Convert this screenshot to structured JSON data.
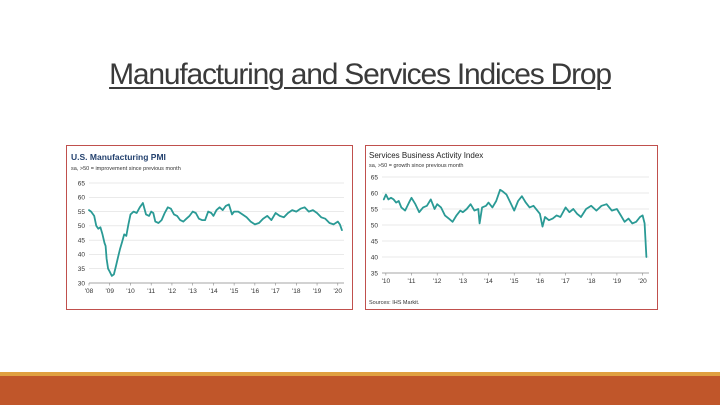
{
  "slide": {
    "title": "Manufacturing and Services Indices Drop",
    "colors": {
      "accent": "#c0562a",
      "accent_light": "#e0a040",
      "line": "#2a9a95",
      "panel_border": "#c0504d"
    }
  },
  "chart_data": [
    {
      "type": "line",
      "title": "U.S. Manufacturing PMI",
      "subtitle": "sa, >50 = improvement since previous month",
      "xlim": [
        2008,
        2020.3
      ],
      "ylim": [
        30,
        65
      ],
      "yticks": [
        30,
        35,
        40,
        45,
        50,
        55,
        60,
        65
      ],
      "xticks": [
        {
          "label": "'08",
          "x": 2008
        },
        {
          "label": "'09",
          "x": 2009
        },
        {
          "label": "'10",
          "x": 2010
        },
        {
          "label": "'11",
          "x": 2011
        },
        {
          "label": "'12",
          "x": 2012
        },
        {
          "label": "'13",
          "x": 2013
        },
        {
          "label": "'14",
          "x": 2014
        },
        {
          "label": "'15",
          "x": 2015
        },
        {
          "label": "'16",
          "x": 2016
        },
        {
          "label": "'17",
          "x": 2017
        },
        {
          "label": "'18",
          "x": 2018
        },
        {
          "label": "'19",
          "x": 2019
        },
        {
          "label": "'20",
          "x": 2020
        }
      ],
      "grid": true,
      "series": [
        {
          "x": [
            2008,
            2008.1,
            2008.25,
            2008.35,
            2008.45,
            2008.55,
            2008.65,
            2008.75,
            2008.8,
            2008.85,
            2008.92,
            2009,
            2009.1,
            2009.2,
            2009.3,
            2009.4,
            2009.5,
            2009.6,
            2009.7,
            2009.8,
            2009.9,
            2010,
            2010.15,
            2010.3,
            2010.45,
            2010.6,
            2010.75,
            2010.9,
            2011,
            2011.1,
            2011.2,
            2011.35,
            2011.5,
            2011.65,
            2011.8,
            2011.95,
            2012.1,
            2012.25,
            2012.4,
            2012.55,
            2012.7,
            2012.85,
            2013,
            2013.15,
            2013.3,
            2013.45,
            2013.6,
            2013.75,
            2013.9,
            2014,
            2014.15,
            2014.3,
            2014.45,
            2014.6,
            2014.75,
            2014.9,
            2015,
            2015.2,
            2015.4,
            2015.6,
            2015.8,
            2016,
            2016.2,
            2016.4,
            2016.6,
            2016.8,
            2017,
            2017.2,
            2017.4,
            2017.6,
            2017.8,
            2018,
            2018.2,
            2018.4,
            2018.6,
            2018.8,
            2019,
            2019.2,
            2019.4,
            2019.6,
            2019.8,
            2020,
            2020.1,
            2020.2
          ],
          "y": [
            55.5,
            55,
            53.5,
            50,
            49,
            49.5,
            47,
            44,
            43,
            38.5,
            35,
            34,
            32.5,
            33,
            36,
            39,
            42,
            44.5,
            47,
            46.5,
            50.5,
            54,
            55,
            54.5,
            56.5,
            58,
            54,
            53.5,
            55,
            54.5,
            51.5,
            51,
            52,
            54.5,
            56.5,
            56,
            54,
            53.5,
            52,
            51.5,
            52.5,
            53.5,
            55,
            54.5,
            52.5,
            52,
            52,
            55,
            54.5,
            53.5,
            55.5,
            56.5,
            55.5,
            57,
            57.5,
            54,
            55,
            55,
            54,
            53,
            51.5,
            50.5,
            51,
            52.5,
            53.5,
            52,
            54.5,
            53.5,
            53,
            54.5,
            55.5,
            55,
            56,
            56.5,
            55,
            55.5,
            54.5,
            53,
            52.5,
            51,
            50.5,
            51.5,
            50.5,
            48.5
          ]
        }
      ]
    },
    {
      "type": "line",
      "title": "Services Business Activity Index",
      "subtitle": "sa, >50 = growth since previous month",
      "source": "Sources: IHS Markit.",
      "xlim": [
        2009.85,
        2020.25
      ],
      "ylim": [
        35,
        65
      ],
      "yticks": [
        35,
        40,
        45,
        50,
        55,
        60,
        65
      ],
      "xticks": [
        {
          "label": "'10",
          "x": 2010
        },
        {
          "label": "'11",
          "x": 2011
        },
        {
          "label": "'12",
          "x": 2012
        },
        {
          "label": "'13",
          "x": 2013
        },
        {
          "label": "'14",
          "x": 2014
        },
        {
          "label": "'15",
          "x": 2015
        },
        {
          "label": "'16",
          "x": 2016
        },
        {
          "label": "'17",
          "x": 2017
        },
        {
          "label": "'18",
          "x": 2018
        },
        {
          "label": "'19",
          "x": 2019
        },
        {
          "label": "'20",
          "x": 2020
        }
      ],
      "grid": true,
      "series": [
        {
          "x": [
            2009.92,
            2010,
            2010.1,
            2010.2,
            2010.3,
            2010.4,
            2010.5,
            2010.6,
            2010.75,
            2010.9,
            2011,
            2011.15,
            2011.3,
            2011.45,
            2011.6,
            2011.75,
            2011.9,
            2012,
            2012.15,
            2012.3,
            2012.45,
            2012.6,
            2012.75,
            2012.9,
            2013,
            2013.15,
            2013.3,
            2013.45,
            2013.6,
            2013.65,
            2013.75,
            2013.9,
            2014,
            2014.15,
            2014.3,
            2014.45,
            2014.55,
            2014.7,
            2014.85,
            2015,
            2015.15,
            2015.3,
            2015.45,
            2015.6,
            2015.75,
            2015.9,
            2016,
            2016.1,
            2016.2,
            2016.35,
            2016.5,
            2016.65,
            2016.8,
            2017,
            2017.15,
            2017.3,
            2017.45,
            2017.6,
            2017.8,
            2018,
            2018.2,
            2018.4,
            2018.6,
            2018.8,
            2019,
            2019.15,
            2019.3,
            2019.45,
            2019.6,
            2019.75,
            2019.9,
            2020,
            2020.08,
            2020.15
          ],
          "y": [
            58,
            59.5,
            58,
            58.5,
            58,
            57,
            57.5,
            55.5,
            54.5,
            57,
            58.5,
            56.5,
            54,
            55.5,
            56,
            58,
            55,
            56.5,
            55.5,
            53,
            52,
            51,
            53,
            54.5,
            54,
            55,
            56.5,
            54.5,
            55,
            50.5,
            55.5,
            56,
            57,
            55.5,
            57.5,
            61,
            60.5,
            59.5,
            57,
            54.5,
            57.5,
            59,
            57,
            55.5,
            56,
            54.5,
            53.5,
            49.5,
            52.5,
            51.5,
            52,
            53,
            52.5,
            55.5,
            54,
            55,
            53.5,
            52.5,
            55,
            56,
            54.5,
            56,
            56.5,
            54.5,
            55,
            53,
            51,
            52,
            50.5,
            51,
            52.5,
            53,
            50.5,
            40
          ]
        }
      ]
    }
  ]
}
